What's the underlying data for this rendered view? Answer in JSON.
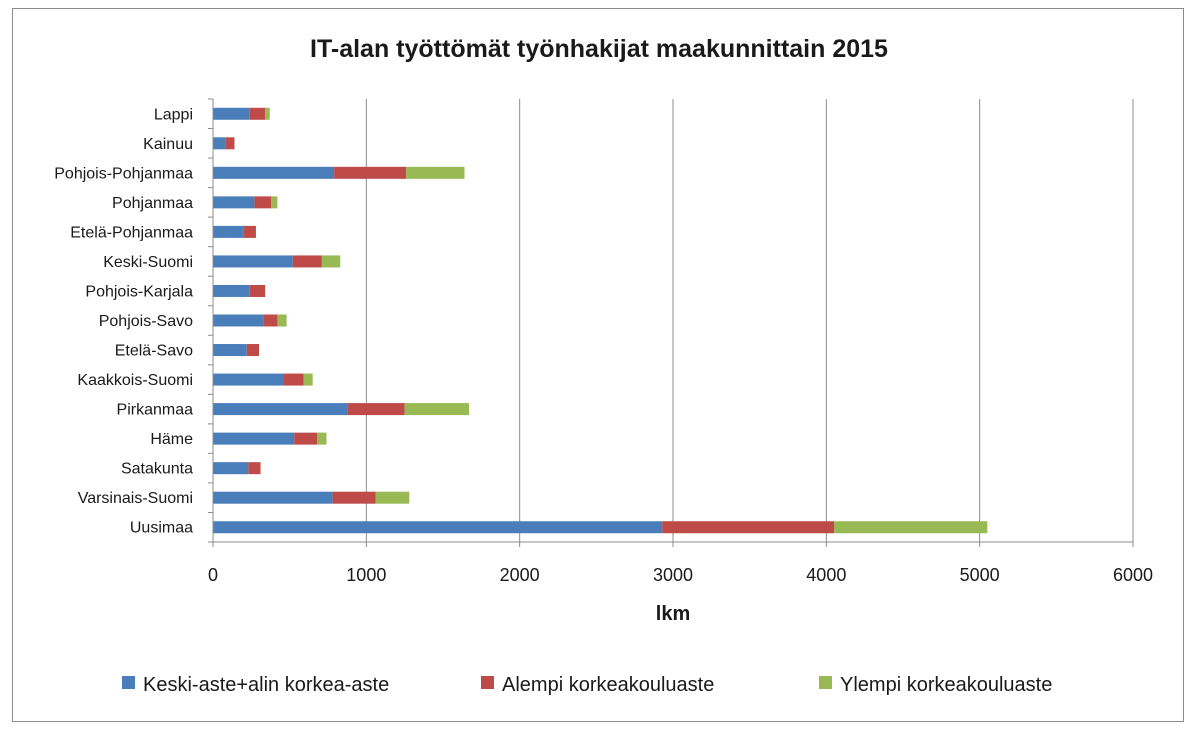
{
  "chart_data": {
    "type": "bar",
    "orientation": "horizontal",
    "stacked": true,
    "title": "IT-alan työttömät työnhakijat maakunnittain 2015",
    "xlabel": "lkm",
    "ylabel": "",
    "xlim": [
      0,
      6000
    ],
    "xticks": [
      "0",
      "1000",
      "2000",
      "3000",
      "4000",
      "5000",
      "6000"
    ],
    "grid": "vertical",
    "legend_position": "bottom",
    "categories": [
      "Lappi",
      "Kainuu",
      "Pohjois-Pohjanmaa",
      "Pohjanmaa",
      "Etelä-Pohjanmaa",
      "Keski-Suomi",
      "Pohjois-Karjala",
      "Pohjois-Savo",
      "Etelä-Savo",
      "Kaakkois-Suomi",
      "Pirkanmaa",
      "Häme",
      "Satakunta",
      "Varsinais-Suomi",
      "Uusimaa"
    ],
    "series": [
      {
        "name": "Keski-aste+alin korkea-aste",
        "color": "#4a7ebb",
        "values": [
          240,
          80,
          790,
          270,
          200,
          520,
          240,
          330,
          220,
          460,
          880,
          530,
          230,
          780,
          2930
        ]
      },
      {
        "name": "Alempi korkeakouluaste",
        "color": "#be4b48",
        "values": [
          100,
          60,
          470,
          110,
          80,
          190,
          100,
          90,
          80,
          130,
          370,
          150,
          80,
          280,
          1120
        ]
      },
      {
        "name": "Ylempi korkeakouluaste",
        "color": "#98b954",
        "values": [
          30,
          0,
          380,
          40,
          0,
          120,
          0,
          60,
          0,
          60,
          420,
          60,
          0,
          220,
          1000
        ]
      }
    ]
  }
}
